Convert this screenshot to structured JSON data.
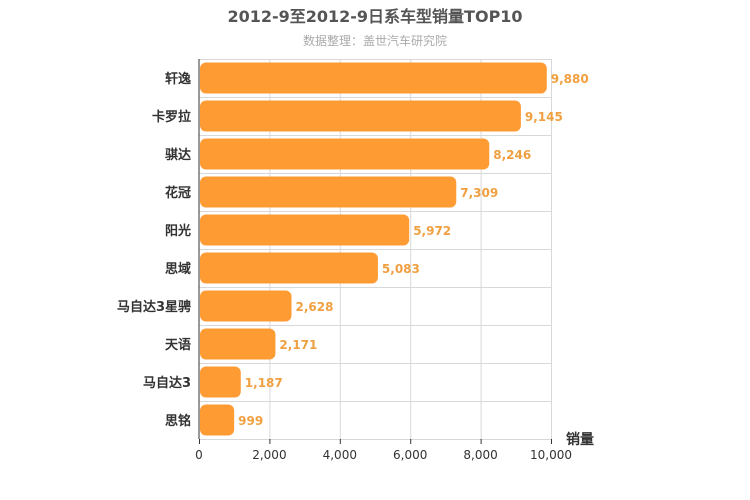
{
  "chart_data": {
    "type": "bar",
    "orientation": "horizontal",
    "title": "2012-9至2012-9日系车型销量TOP10",
    "subtitle": "数据整理：盖世汽车研究院",
    "categories": [
      "轩逸",
      "卡罗拉",
      "骐达",
      "花冠",
      "阳光",
      "思域",
      "马自达3星骋",
      "天语",
      "马自达3",
      "思铭"
    ],
    "values": [
      9880,
      9145,
      8246,
      7309,
      5972,
      5083,
      2628,
      2171,
      1187,
      999
    ],
    "value_labels": [
      "9,880",
      "9,145",
      "8,246",
      "7,309",
      "5,972",
      "5,083",
      "2,628",
      "2,171",
      "1,187",
      "999"
    ],
    "xlabel": "销量",
    "xlim": [
      0,
      10000
    ],
    "x_ticks": [
      0,
      2000,
      4000,
      6000,
      8000,
      10000
    ],
    "x_tick_labels": [
      "0",
      "2,000",
      "4,000",
      "6,000",
      "8,000",
      "10,000"
    ],
    "grid": true,
    "bar_color": "#ff9b33",
    "label_color": "#f0a040"
  }
}
